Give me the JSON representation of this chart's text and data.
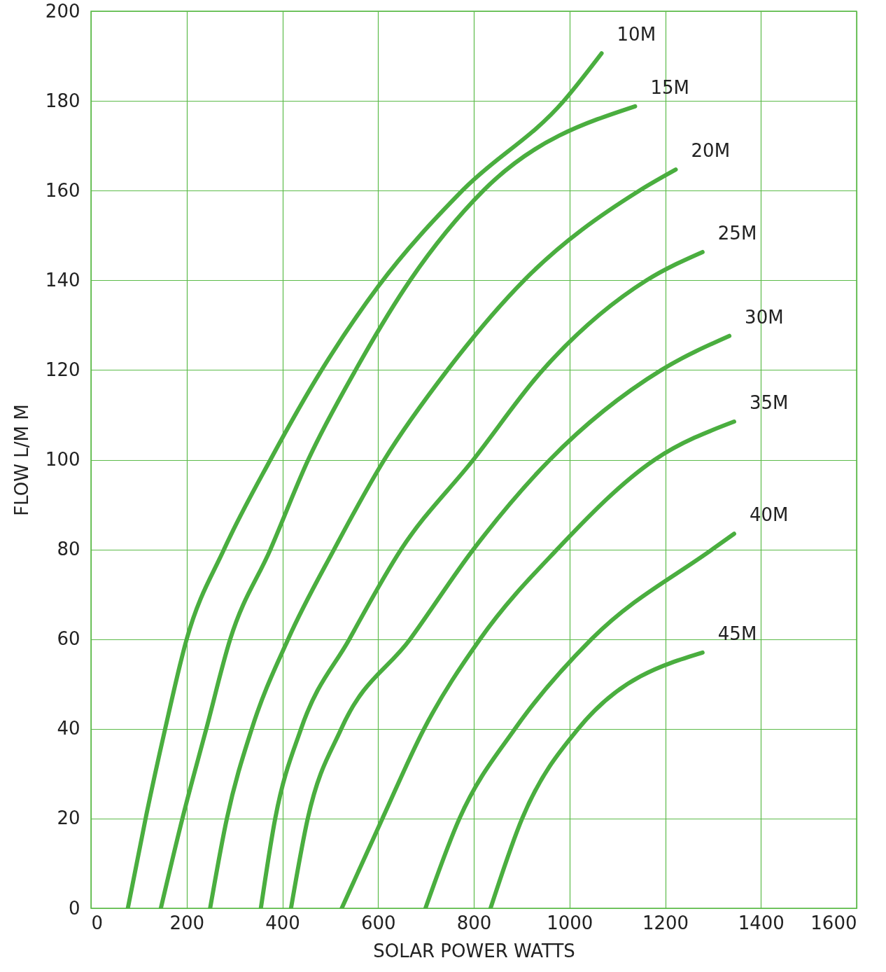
{
  "chart_data": {
    "type": "line",
    "xlabel": "SOLAR POWER WATTS",
    "ylabel": "FLOW L/M M",
    "xlim": [
      0,
      1600
    ],
    "ylim": [
      0,
      200
    ],
    "xticks": [
      0,
      200,
      400,
      600,
      800,
      1000,
      1200,
      1400,
      1600
    ],
    "yticks": [
      0,
      20,
      40,
      60,
      80,
      100,
      120,
      140,
      160,
      180,
      200
    ],
    "grid": true,
    "marker": "none",
    "line_style": "solid",
    "series": [
      {
        "name": "10M",
        "color": "#4aae3f",
        "x": [
          77,
          116,
          155,
          200,
          278,
          375,
          482,
          600,
          776,
          988,
          1067
        ],
        "values": [
          0,
          21,
          40,
          60,
          80,
          100,
          120,
          138.6,
          160,
          180,
          190.6
        ]
      },
      {
        "name": "15M",
        "color": "#4aae3f",
        "x": [
          146,
          191,
          241,
          291,
          375,
          454,
          553,
          667,
          820,
          1137
        ],
        "values": [
          0,
          20,
          40,
          60,
          80,
          100,
          120,
          140,
          160,
          178.8
        ]
      },
      {
        "name": "20M",
        "color": "#4aae3f",
        "x": [
          249,
          284,
          336,
          412,
          508,
          613,
          745,
          905,
          1146,
          1222
        ],
        "values": [
          0,
          20,
          40,
          60,
          80,
          100,
          120,
          140,
          160,
          164.7
        ]
      },
      {
        "name": "25M",
        "color": "#4aae3f",
        "x": [
          355,
          385,
          439,
          540,
          648,
          799,
          944,
          1161,
          1278
        ],
        "values": [
          0,
          20,
          40,
          60,
          80,
          100,
          120,
          140,
          146.3
        ]
      },
      {
        "name": "30M",
        "color": "#4aae3f",
        "x": [
          418,
          453,
          523,
          667,
          799,
          959,
          1192,
          1334
        ],
        "values": [
          0,
          20,
          40,
          60,
          80,
          100,
          120,
          127.6
        ]
      },
      {
        "name": "35M",
        "color": "#4aae3f",
        "x": [
          524,
          609,
          696,
          813,
          974,
          1178,
          1344
        ],
        "values": [
          0,
          20,
          40,
          60,
          80,
          100,
          108.5
        ]
      },
      {
        "name": "40M",
        "color": "#4aae3f",
        "x": [
          699,
          770,
          886,
          1046,
          1298,
          1344
        ],
        "values": [
          0,
          20,
          40,
          60,
          80,
          83.5
        ]
      },
      {
        "name": "45M",
        "color": "#4aae3f",
        "x": [
          835,
          901,
          1018,
          1278
        ],
        "values": [
          0,
          20,
          40,
          57
        ]
      }
    ]
  }
}
